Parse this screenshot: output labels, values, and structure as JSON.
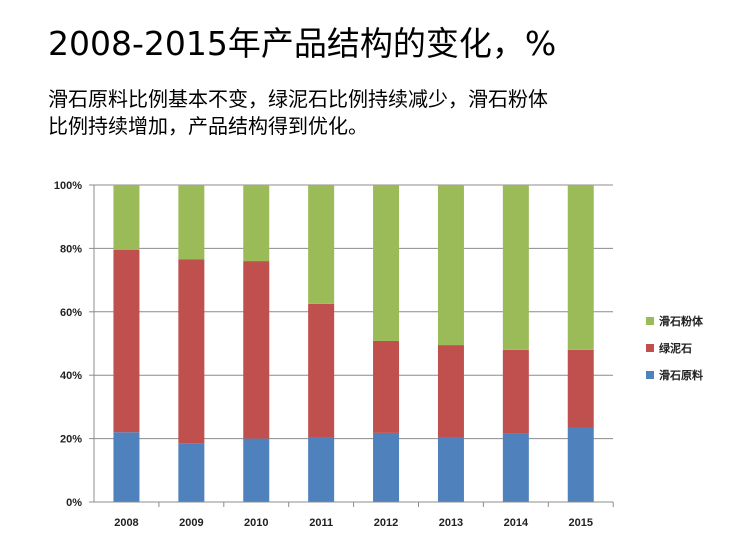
{
  "page": {
    "title": "2008-2015年产品结构的变化，%",
    "subtitle_lines": [
      "滑石原料比例基本不变，绿泥石比例持续减少，滑石粉体",
      "比例持续增加，产品结构得到优化。"
    ]
  },
  "chart_data": {
    "type": "bar",
    "stacked": true,
    "percent": true,
    "categories": [
      "2008",
      "2009",
      "2010",
      "2011",
      "2012",
      "2013",
      "2014",
      "2015"
    ],
    "series": [
      {
        "name": "滑石原料",
        "color": "#4F81BD",
        "values": [
          22,
          18.5,
          20,
          20.5,
          21.8,
          20.5,
          21.5,
          23.5
        ]
      },
      {
        "name": "绿泥石",
        "color": "#C0504D",
        "values": [
          57.5,
          58,
          56,
          42,
          29,
          29,
          26.5,
          24.5
        ]
      },
      {
        "name": "滑石粉体",
        "color": "#9BBB59",
        "values": [
          20.5,
          23.5,
          24,
          37.5,
          49.2,
          50.5,
          52,
          52
        ]
      }
    ],
    "y_ticks": [
      "0%",
      "20%",
      "40%",
      "60%",
      "80%",
      "100%"
    ],
    "ylim": [
      0,
      100
    ],
    "grid": true,
    "legend_position": "right",
    "legend_order": [
      "滑石粉体",
      "绿泥石",
      "滑石原料"
    ]
  }
}
